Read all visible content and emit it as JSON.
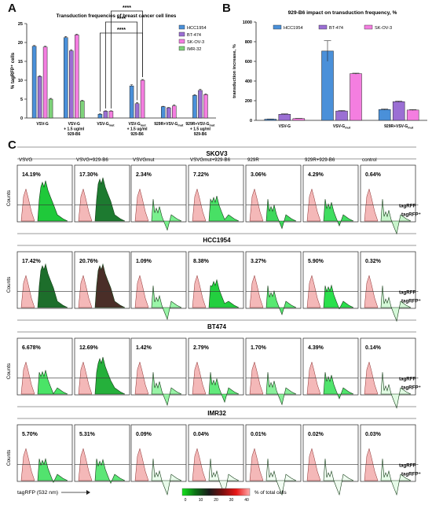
{
  "panel_letters": [
    "A",
    "B",
    "C"
  ],
  "chart_data": [
    {
      "id": "A",
      "type": "bar",
      "title": "Transduction frequencies of breast cancer cell lines",
      "ylabel": "% tagRFP⁺ cells",
      "ylim": [
        0,
        25
      ],
      "yticks": [
        0,
        5,
        10,
        15,
        20,
        25
      ],
      "categories": [
        [
          "VSV-G"
        ],
        [
          "VSV-G",
          "+ 1.5 ug/ml",
          "929-B6"
        ],
        [
          "VSV-G_mut"
        ],
        [
          "VSV-G_mut",
          "+ 1.5 ug/ml",
          "929-B6"
        ],
        [
          "929R+VSV-G_mut"
        ],
        [
          "929R+VSV-G_mut",
          "+ 1.5 ug/ml",
          "929-B6"
        ]
      ],
      "series": [
        {
          "name": "HCC1954",
          "color": "#4a90d9",
          "values": [
            19.0,
            21.3,
            1.0,
            8.5,
            3.0,
            6.0
          ],
          "err": [
            0.2,
            0.3,
            0.1,
            0.3,
            0.1,
            0.2
          ]
        },
        {
          "name": "BT-474",
          "color": "#9b6fd4",
          "values": [
            11.0,
            17.8,
            1.8,
            3.8,
            2.7,
            7.3
          ],
          "err": [
            0.2,
            0.3,
            0.1,
            0.3,
            0.1,
            0.3
          ]
        },
        {
          "name": "SK-OV-3",
          "color": "#f47ee0",
          "values": [
            18.8,
            22.0,
            1.8,
            10.0,
            3.2,
            6.2
          ],
          "err": [
            0.2,
            0.2,
            0.1,
            0.2,
            0.3,
            0.2
          ]
        },
        {
          "name": "IMR-32",
          "color": "#7ed37a",
          "values": [
            5.0,
            4.5,
            null,
            null,
            null,
            null
          ],
          "err": [
            0.2,
            0.2,
            null,
            null,
            null,
            null
          ]
        }
      ],
      "significance": [
        {
          "label": "****",
          "from": [
            2,
            0
          ],
          "to": [
            3,
            2
          ]
        },
        {
          "label": "****",
          "from": [
            2,
            1
          ],
          "to": [
            3,
            1
          ]
        },
        {
          "label": "****",
          "from": [
            2,
            2
          ],
          "to": [
            3,
            2
          ]
        }
      ],
      "legend_position": "top-right"
    },
    {
      "id": "B",
      "type": "bar",
      "title": "929-B6 impact on transduction frequency, %",
      "ylabel": "transduction increase, %",
      "ylim": [
        0,
        1000
      ],
      "yticks": [
        0,
        200,
        400,
        600,
        800,
        1000
      ],
      "categories": [
        [
          "VSV-G"
        ],
        [
          "VSV-G_mut"
        ],
        [
          "929R+VSV-G_mut"
        ]
      ],
      "series": [
        {
          "name": "HCC1954",
          "color": "#4a90d9",
          "values": [
            12,
            705,
            110
          ],
          "err": [
            2,
            105,
            5
          ]
        },
        {
          "name": "BT-474",
          "color": "#9b6fd4",
          "values": [
            62,
            95,
            190
          ],
          "err": [
            4,
            5,
            5
          ]
        },
        {
          "name": "SK-OV-3",
          "color": "#f47ee0",
          "values": [
            18,
            475,
            105
          ],
          "err": [
            2,
            5,
            4
          ]
        }
      ],
      "legend_position": "top"
    },
    {
      "id": "C",
      "type": "histogram-grid",
      "columns": [
        "VSVG",
        "VSVG+929-B6",
        "VSVGmut",
        "VSVGmut+929-B6",
        "929R",
        "929R+929-B6",
        "control"
      ],
      "rows": [
        {
          "name": "SKOV3",
          "pcts": [
            "14.19%",
            "17.30%",
            "2.34%",
            "7.22%",
            "3.06%",
            "4.29%",
            "0.64%"
          ],
          "colors": [
            "#1fc93a",
            "#1d7a30",
            "#7af08e",
            "#48e065",
            "#3ed85c",
            "#40dd60",
            "#c8f5cc"
          ]
        },
        {
          "name": "HCC1954",
          "pcts": [
            "17.42%",
            "20.76%",
            "1.09%",
            "8.38%",
            "3.27%",
            "5.90%",
            "0.32%"
          ],
          "colors": [
            "#1d6e2b",
            "#4a2e28",
            "#9af5a8",
            "#23cf3f",
            "#58e872",
            "#2ae04c",
            "#d5f8d8"
          ]
        },
        {
          "name": "BT474",
          "pcts": [
            "6.678%",
            "12.69%",
            "1.42%",
            "2.79%",
            "1.70%",
            "4.39%",
            "0.14%"
          ],
          "colors": [
            "#4ae467",
            "#25b03b",
            "#98f3a6",
            "#62ea7b",
            "#88f09a",
            "#50e46c",
            "#e0fae2"
          ]
        },
        {
          "name": "IMR32",
          "pcts": [
            "5.70%",
            "5.31%",
            "0.09%",
            "0.04%",
            "0.01%",
            "0.02%",
            "0.03%"
          ],
          "colors": [
            "#52e36e",
            "#5de677",
            "#e8fbea",
            "#eefcef",
            "#f2fdf3",
            "#f0fcf1",
            "#e6fbe8"
          ]
        }
      ],
      "ylabel": "Counts",
      "xlabel": "tagRFP (532 nm)",
      "gate_labels": [
        "tagRFP⁻",
        "tagRFP⁺"
      ],
      "colorbar": {
        "ticks": [
          "0",
          "10",
          "20",
          "30",
          "40"
        ],
        "label": "% of total cells",
        "stops": [
          "#14e21c",
          "#0c6d16",
          "#1a1a1a",
          "#7a1010",
          "#e81616",
          "#ffaaaa"
        ]
      }
    }
  ]
}
